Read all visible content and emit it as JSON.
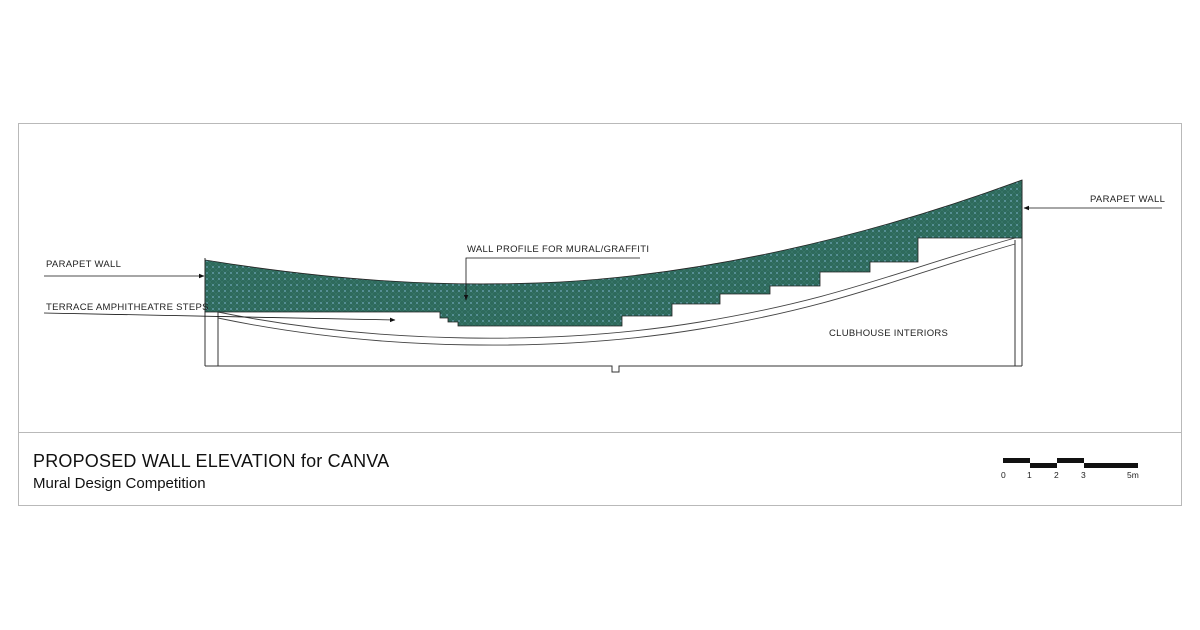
{
  "labels": {
    "parapet_left": "PARAPET WALL",
    "parapet_right": "PARAPET WALL",
    "wall_profile": "WALL PROFILE FOR MURAL/GRAFFITI",
    "terrace_steps": "TERRACE AMPHITHEATRE STEPS",
    "clubhouse": "CLUBHOUSE INTERIORS"
  },
  "title_block": {
    "title": "PROPOSED WALL ELEVATION for CANVA",
    "subtitle": "Mural Design Competition"
  },
  "scale_bar": {
    "ticks": [
      "0",
      "1",
      "2",
      "3",
      "5m"
    ]
  },
  "colors": {
    "mural_fill": "#2e6a5c",
    "mural_dot": "#7aa9c9",
    "line": "#333333",
    "frame": "#b9b9b9"
  }
}
